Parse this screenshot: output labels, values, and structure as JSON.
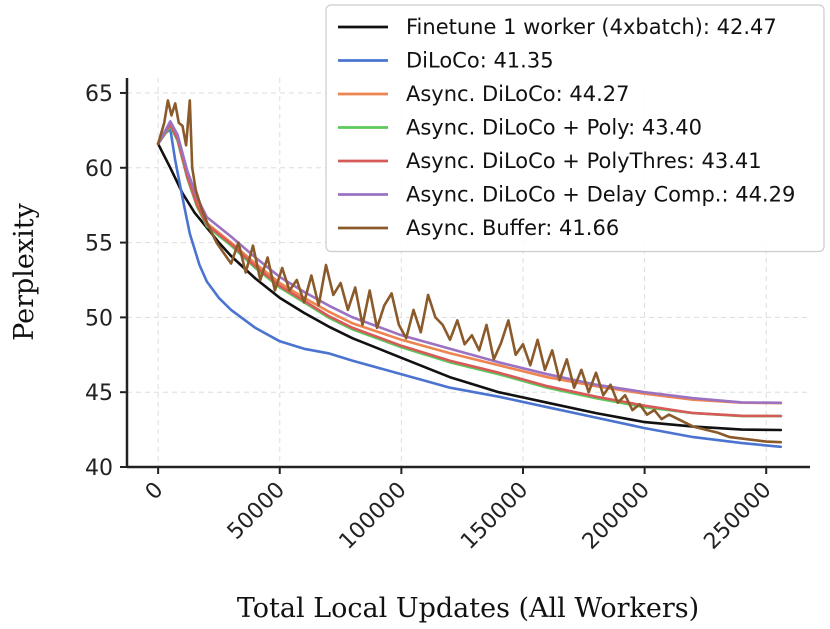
{
  "chart_data": {
    "type": "line",
    "xlabel": "Total Local Updates (All Workers)",
    "ylabel": "Perplexity",
    "xlim": [
      -12800,
      268000
    ],
    "ylim": [
      40,
      66
    ],
    "xticks": [
      0,
      50000,
      100000,
      150000,
      200000,
      250000
    ],
    "xtick_labels": [
      "0",
      "50000",
      "100000",
      "150000",
      "200000",
      "250000"
    ],
    "yticks": [
      40,
      45,
      50,
      55,
      60,
      65
    ],
    "ytick_labels": [
      "40",
      "45",
      "50",
      "55",
      "60",
      "65"
    ],
    "grid": true,
    "legend_position": "top-right",
    "series": [
      {
        "name": "Finetune 1 worker (4xbatch): 42.47",
        "color": "#111111",
        "x": [
          0,
          5000,
          10000,
          15000,
          20000,
          25000,
          30000,
          40000,
          50000,
          60000,
          70000,
          80000,
          100000,
          120000,
          140000,
          160000,
          180000,
          200000,
          220000,
          240000,
          256000
        ],
        "y": [
          61.6,
          60.0,
          58.3,
          57.0,
          56.0,
          55.0,
          54.1,
          52.6,
          51.3,
          50.3,
          49.4,
          48.6,
          47.3,
          46.0,
          45.0,
          44.3,
          43.6,
          43.0,
          42.7,
          42.5,
          42.47
        ]
      },
      {
        "name": "DiLoCo: 41.35",
        "color": "#4a74d0",
        "x": [
          0,
          3000,
          5000,
          7000,
          10000,
          13000,
          17000,
          20000,
          25000,
          30000,
          40000,
          50000,
          60000,
          70000,
          80000,
          100000,
          120000,
          140000,
          160000,
          180000,
          200000,
          220000,
          240000,
          256000
        ],
        "y": [
          61.6,
          62.3,
          62.6,
          60.5,
          58.0,
          55.6,
          53.5,
          52.4,
          51.3,
          50.5,
          49.3,
          48.4,
          47.9,
          47.6,
          47.1,
          46.2,
          45.3,
          44.7,
          44.0,
          43.3,
          42.6,
          42.0,
          41.6,
          41.35
        ]
      },
      {
        "name": "Async. DiLoCo: 44.27",
        "color": "#ee8450",
        "x": [
          0,
          3000,
          5000,
          8000,
          12000,
          16000,
          20000,
          30000,
          40000,
          50000,
          60000,
          70000,
          80000,
          100000,
          120000,
          140000,
          160000,
          180000,
          200000,
          220000,
          240000,
          256000
        ],
        "y": [
          61.6,
          62.4,
          63.0,
          62.0,
          59.5,
          57.6,
          56.3,
          55.0,
          53.6,
          52.3,
          51.3,
          50.4,
          49.6,
          48.5,
          47.6,
          46.8,
          46.0,
          45.4,
          44.9,
          44.5,
          44.3,
          44.27
        ]
      },
      {
        "name": "Async. DiLoCo + Poly: 43.40",
        "color": "#5cc95c",
        "x": [
          0,
          3000,
          5000,
          8000,
          12000,
          16000,
          20000,
          30000,
          40000,
          50000,
          60000,
          70000,
          80000,
          100000,
          120000,
          140000,
          160000,
          180000,
          200000,
          220000,
          240000,
          256000
        ],
        "y": [
          61.6,
          62.3,
          62.8,
          61.8,
          59.3,
          57.4,
          56.1,
          54.8,
          53.3,
          52.0,
          51.0,
          50.0,
          49.2,
          48.0,
          47.0,
          46.2,
          45.3,
          44.6,
          44.0,
          43.6,
          43.4,
          43.4
        ]
      },
      {
        "name": "Async. DiLoCo + PolyThres: 43.41",
        "color": "#d65a5a",
        "x": [
          0,
          3000,
          5000,
          8000,
          12000,
          16000,
          20000,
          30000,
          40000,
          50000,
          60000,
          70000,
          80000,
          100000,
          120000,
          140000,
          160000,
          180000,
          200000,
          220000,
          240000,
          256000
        ],
        "y": [
          61.6,
          62.4,
          62.9,
          61.9,
          59.4,
          57.5,
          56.2,
          54.9,
          53.4,
          52.1,
          51.1,
          50.1,
          49.3,
          48.1,
          47.1,
          46.3,
          45.4,
          44.7,
          44.1,
          43.6,
          43.42,
          43.41
        ]
      },
      {
        "name": "Async. DiLoCo + Delay Comp.: 44.29",
        "color": "#9b72c2",
        "x": [
          0,
          3000,
          5000,
          8000,
          12000,
          16000,
          20000,
          30000,
          40000,
          50000,
          60000,
          70000,
          80000,
          100000,
          120000,
          140000,
          160000,
          180000,
          200000,
          220000,
          240000,
          256000
        ],
        "y": [
          61.6,
          62.5,
          63.1,
          62.2,
          59.8,
          58.0,
          56.7,
          55.4,
          54.0,
          52.7,
          51.7,
          50.8,
          50.0,
          48.8,
          47.9,
          47.0,
          46.2,
          45.5,
          45.0,
          44.6,
          44.32,
          44.29
        ]
      },
      {
        "name": "Async. Buffer: 41.66",
        "color": "#8b5a2b",
        "x": [
          0,
          2500,
          4000,
          5500,
          7000,
          8500,
          10000,
          11500,
          13000,
          14000,
          15500,
          18000,
          21000,
          24000,
          27000,
          30000,
          33000,
          36000,
          39000,
          42000,
          45000,
          48000,
          51000,
          54000,
          57000,
          60000,
          63000,
          66000,
          69000,
          72000,
          75000,
          78000,
          81000,
          84000,
          87000,
          90000,
          93000,
          96000,
          99000,
          102000,
          105000,
          108000,
          111000,
          114000,
          117000,
          120000,
          123000,
          126000,
          129000,
          132000,
          135000,
          138000,
          141000,
          144000,
          147000,
          150000,
          153000,
          156000,
          159000,
          162000,
          165000,
          168000,
          171000,
          174000,
          177000,
          180000,
          183000,
          186000,
          189000,
          192000,
          195000,
          198000,
          201000,
          204000,
          207000,
          210000,
          215000,
          220000,
          225000,
          230000,
          235000,
          240000,
          245000,
          250000,
          256000
        ],
        "y": [
          61.6,
          63.0,
          64.5,
          63.5,
          64.3,
          63.0,
          62.8,
          61.5,
          64.5,
          60.0,
          58.5,
          57.2,
          56.0,
          55.0,
          54.3,
          53.6,
          55.0,
          53.0,
          54.8,
          52.5,
          54.0,
          51.8,
          53.3,
          51.8,
          52.5,
          51.0,
          52.8,
          50.8,
          53.5,
          51.5,
          52.3,
          50.5,
          52.0,
          49.5,
          51.8,
          49.3,
          50.8,
          51.6,
          49.5,
          48.6,
          50.5,
          49.0,
          51.5,
          50.0,
          49.5,
          48.5,
          49.8,
          48.2,
          48.8,
          47.8,
          49.5,
          47.2,
          48.3,
          49.8,
          47.5,
          48.2,
          46.8,
          48.5,
          46.5,
          47.8,
          45.8,
          47.2,
          45.3,
          46.5,
          45.0,
          46.3,
          44.8,
          45.5,
          44.3,
          44.8,
          43.8,
          44.2,
          43.5,
          43.8,
          43.2,
          43.5,
          43.1,
          42.7,
          42.5,
          42.3,
          42.0,
          41.9,
          41.8,
          41.7,
          41.66
        ]
      }
    ]
  }
}
